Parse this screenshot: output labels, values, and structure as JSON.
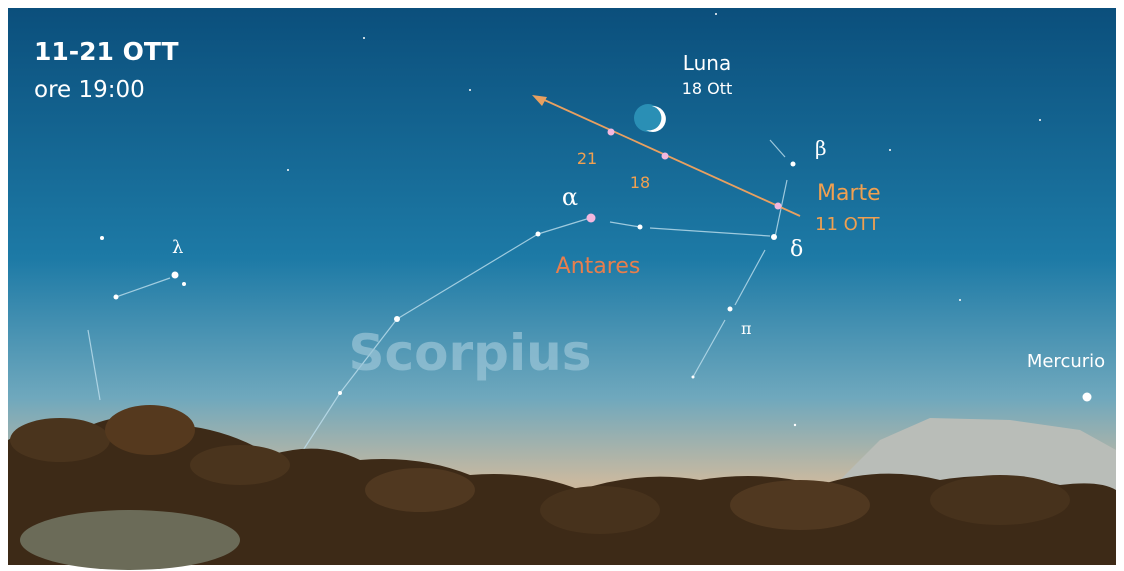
{
  "header": {
    "date": "11-21 OTT",
    "time": "ore 19:00"
  },
  "labels": {
    "moon": "Luna",
    "moon_date": "18 Ott",
    "day_21": "21",
    "day_18": "18",
    "alpha": "α",
    "beta": "β",
    "delta": "δ",
    "lambda": "λ",
    "pi": "π",
    "antares": "Antares",
    "mars": "Marte",
    "mars_date": "11 OTT",
    "constellation": "Scorpius",
    "mercury": "Mercurio"
  }
}
